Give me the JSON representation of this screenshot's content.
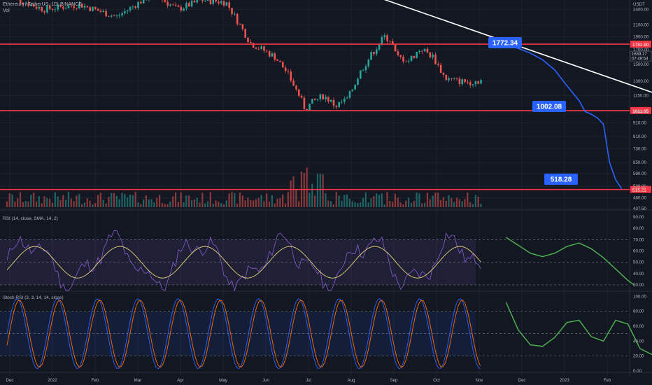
{
  "header": {
    "symbol": "Ethereum / TetherUS, 1D, BINANCE",
    "volume_label": "Vol"
  },
  "panes": {
    "rsi_label": "RSI (14, close, SMA, 14, 2)",
    "stoch_label": "Stoch RSI (3, 3, 14, 14, close)"
  },
  "colors": {
    "background": "#131722",
    "up": "#26a69a",
    "down": "#ef5350",
    "projection": "#2962ff",
    "red_line": "#f23645",
    "trendline": "#ffffff",
    "rsi": "#7e57c2",
    "rsi_ma": "#e6d37a",
    "green_projection": "#4caf50",
    "stoch_k": "#2962ff",
    "stoch_d": "#ff6d00"
  },
  "chart_data": {
    "type": "candlestick",
    "quote_unit": "USDT",
    "price_axis_ticks": [
      "2400.00",
      "2100.00",
      "1900.00",
      "1700.00",
      "1500.00",
      "1300.00",
      "1150.00",
      "1000.00",
      "910.00",
      "810.00",
      "730.00",
      "650.00",
      "590.00",
      "530.00",
      "480.00",
      "437.50"
    ],
    "price_range": [
      437.5,
      2600
    ],
    "price_scale": "log",
    "x_ticks": [
      "Dec",
      "2022",
      "Feb",
      "Mar",
      "Apr",
      "May",
      "Jun",
      "Jul",
      "Aug",
      "Sep",
      "Oct",
      "Nov",
      "Dec",
      "2023",
      "Feb"
    ],
    "horizontal_levels": [
      1782.9,
      1011.05,
      515.21
    ],
    "level_tags": [
      "1782.90",
      "1011.05",
      "515.21"
    ],
    "current_price_tag": [
      "1639.17",
      "07:49:53"
    ],
    "price_labels": [
      "1772.34",
      "1002.08",
      "518.28"
    ],
    "projection_path": [
      [
        41,
        1772
      ],
      [
        42,
        1720
      ],
      [
        43,
        1650
      ],
      [
        44,
        1560
      ],
      [
        45,
        1430
      ],
      [
        46,
        1250
      ],
      [
        47,
        1100
      ],
      [
        47.5,
        1002
      ],
      [
        48,
        980
      ],
      [
        48.5,
        950
      ],
      [
        49,
        900
      ],
      [
        49.5,
        650
      ],
      [
        50,
        560
      ],
      [
        50.5,
        518
      ]
    ],
    "trendline": [
      [
        27,
        2600
      ],
      [
        54,
        1300
      ]
    ],
    "rsi": {
      "axis_ticks": [
        "90.00",
        "80.00",
        "70.00",
        "60.00",
        "50.00",
        "40.00",
        "30.00"
      ],
      "range": [
        25,
        95
      ],
      "bands": [
        70,
        50,
        30
      ],
      "projection": [
        [
          41,
          72
        ],
        [
          42,
          65
        ],
        [
          43,
          58
        ],
        [
          44,
          55
        ],
        [
          45,
          58
        ],
        [
          46,
          64
        ],
        [
          47,
          67
        ],
        [
          48,
          62
        ],
        [
          49,
          54
        ],
        [
          50,
          44
        ],
        [
          51,
          34
        ],
        [
          51.5,
          30
        ]
      ]
    },
    "stoch_rsi": {
      "axis_ticks": [
        "100.00",
        "80.00",
        "60.00",
        "40.00",
        "20.00",
        "0.00"
      ],
      "range": [
        0,
        105
      ],
      "bands": [
        80,
        50,
        20
      ],
      "projection": [
        [
          41,
          92
        ],
        [
          42,
          55
        ],
        [
          43,
          35
        ],
        [
          44,
          33
        ],
        [
          45,
          45
        ],
        [
          46,
          65
        ],
        [
          47,
          68
        ],
        [
          48,
          46
        ],
        [
          49,
          40
        ],
        [
          50,
          68
        ],
        [
          51,
          63
        ],
        [
          52,
          30
        ],
        [
          53,
          22
        ],
        [
          54,
          21
        ]
      ]
    }
  }
}
